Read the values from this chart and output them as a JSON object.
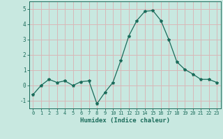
{
  "x": [
    0,
    1,
    2,
    3,
    4,
    5,
    6,
    7,
    8,
    9,
    10,
    11,
    12,
    13,
    14,
    15,
    16,
    17,
    18,
    19,
    20,
    21,
    22,
    23
  ],
  "y": [
    -0.6,
    0.0,
    0.4,
    0.2,
    0.3,
    0.0,
    0.25,
    0.3,
    -1.2,
    -0.45,
    0.2,
    1.65,
    3.25,
    4.25,
    4.85,
    4.9,
    4.25,
    3.0,
    1.55,
    1.05,
    0.75,
    0.4,
    0.4,
    0.2
  ],
  "line_color": "#1a6b5a",
  "marker": "*",
  "marker_size": 3,
  "bg_color": "#c8e8e0",
  "grid_color": "#d8b8b8",
  "text_color": "#1a6b5a",
  "xlabel": "Humidex (Indice chaleur)",
  "ylim": [
    -1.5,
    5.5
  ],
  "xlim": [
    -0.5,
    23.5
  ],
  "yticks": [
    -1,
    0,
    1,
    2,
    3,
    4,
    5
  ],
  "xticks": [
    0,
    1,
    2,
    3,
    4,
    5,
    6,
    7,
    8,
    9,
    10,
    11,
    12,
    13,
    14,
    15,
    16,
    17,
    18,
    19,
    20,
    21,
    22,
    23
  ]
}
